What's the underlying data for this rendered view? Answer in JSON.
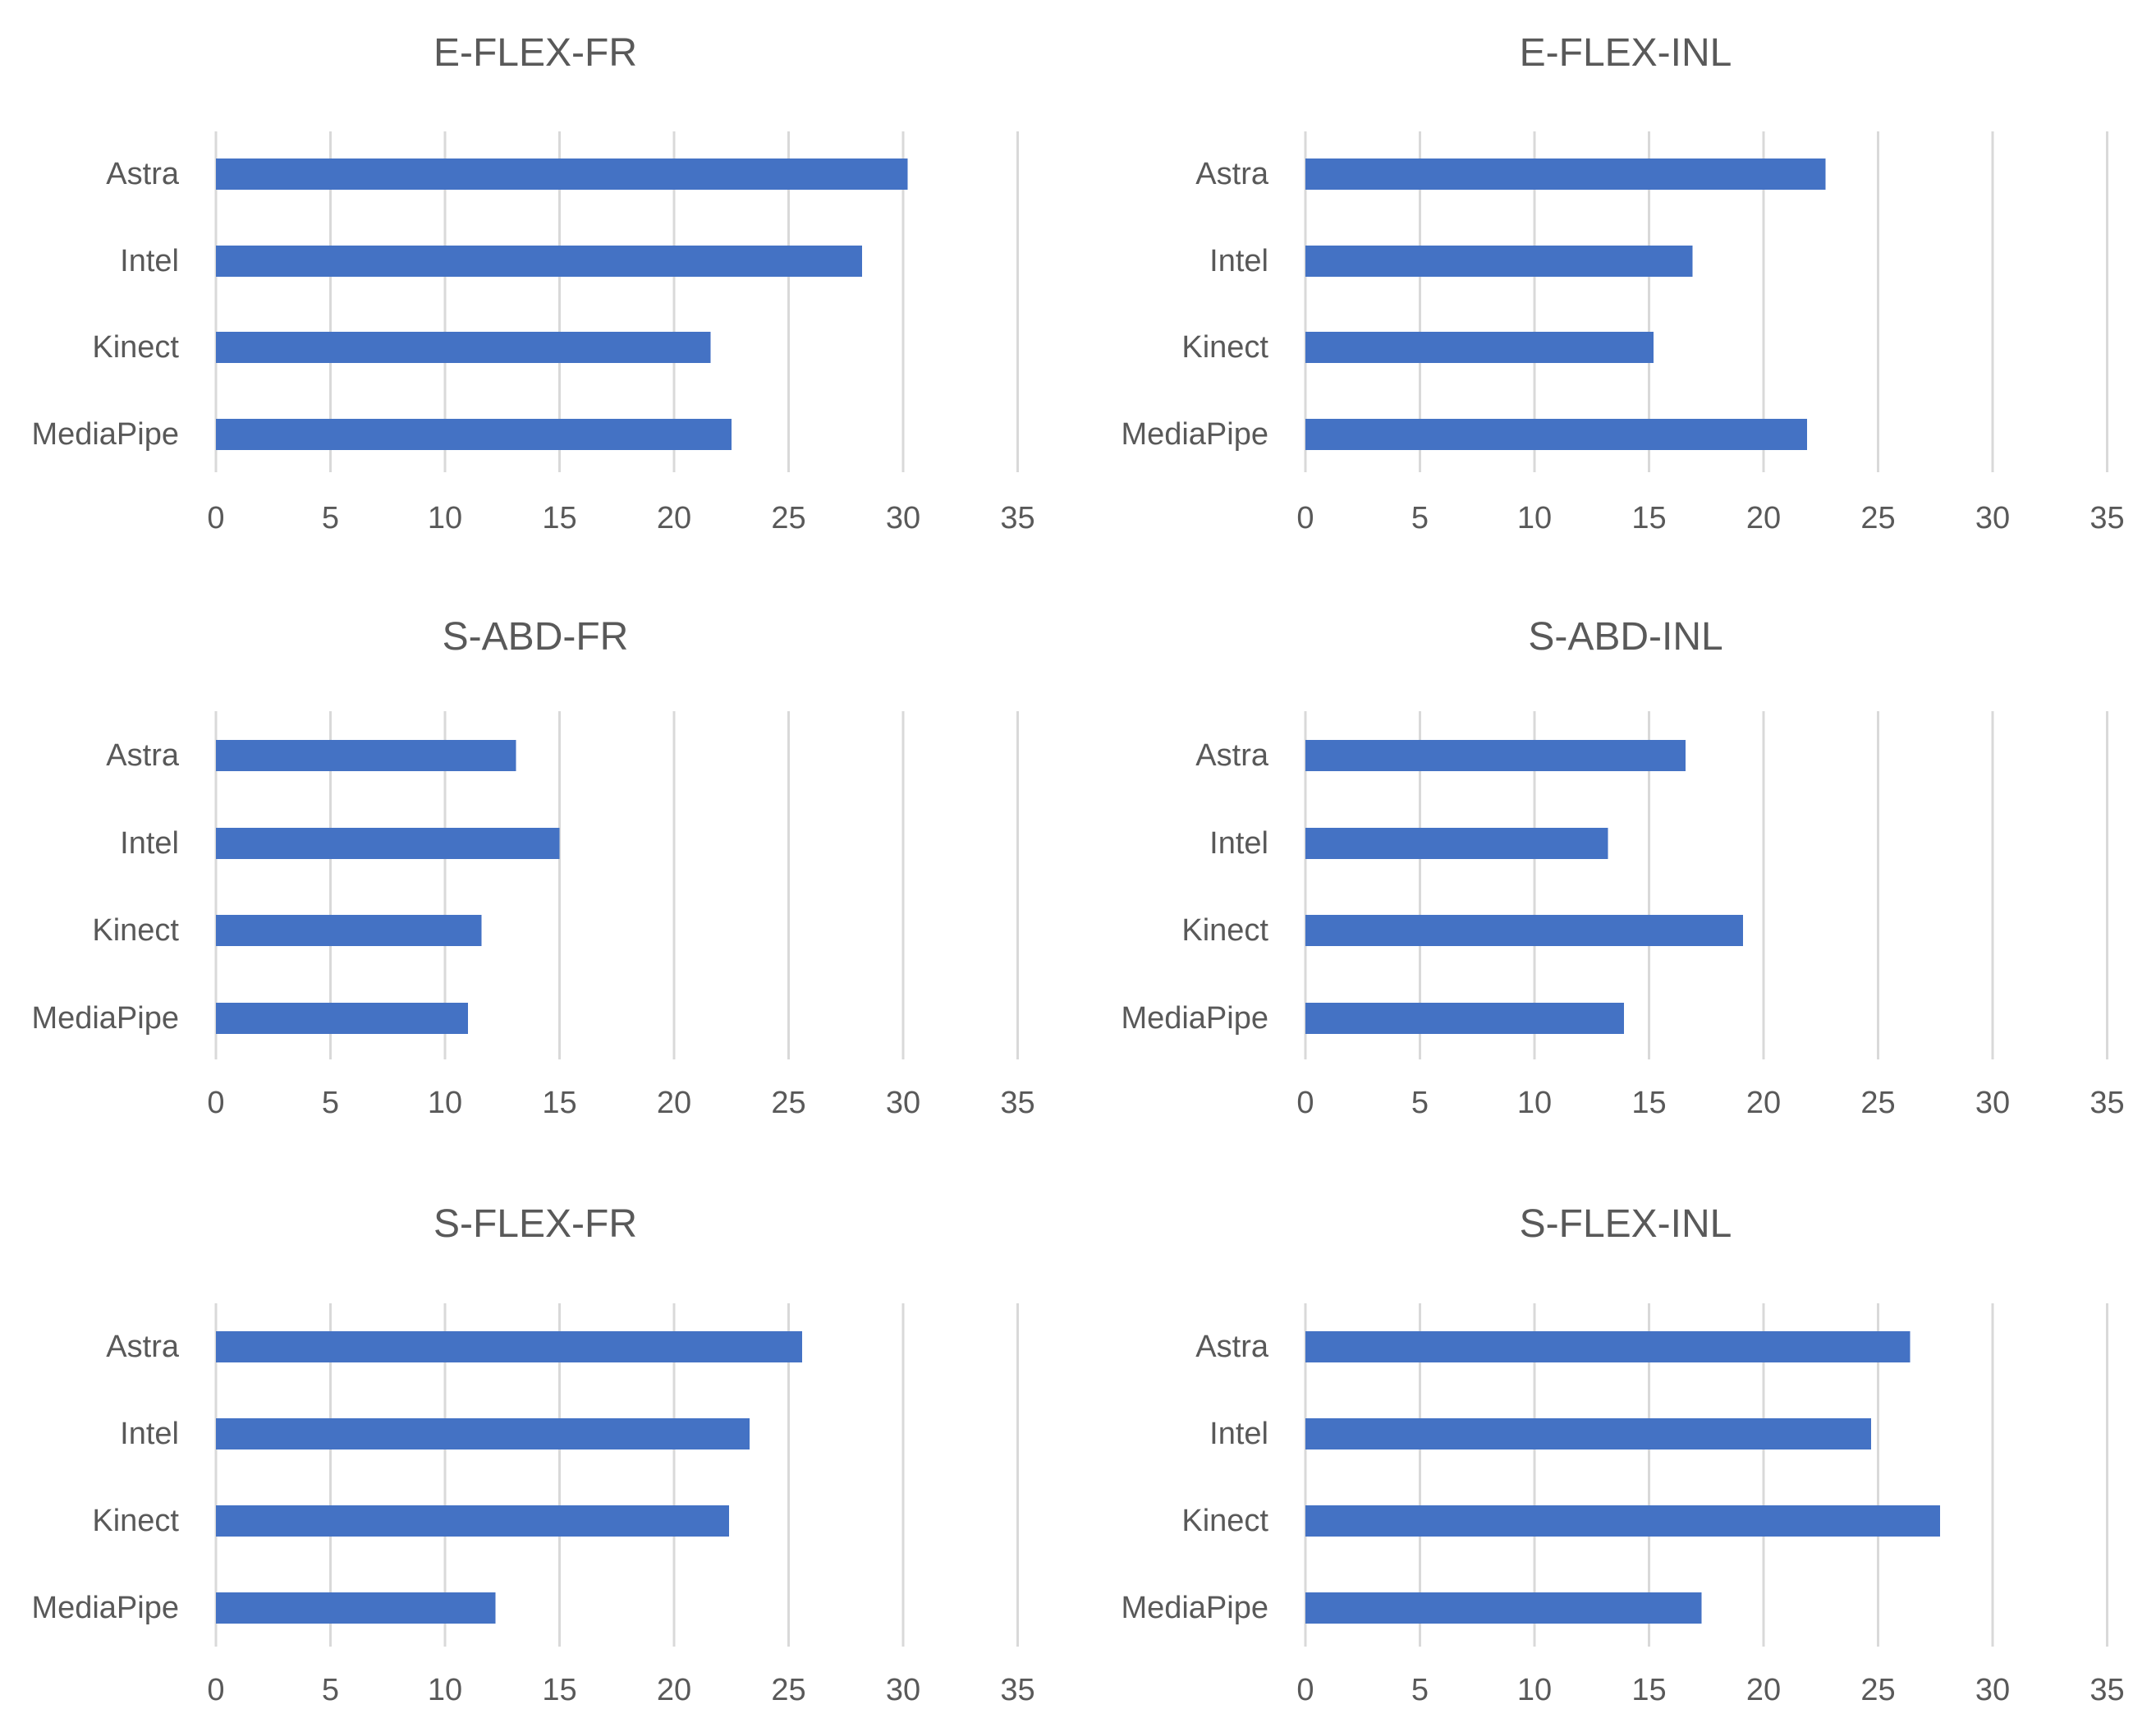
{
  "figure": {
    "layout": "3 rows x 2 columns of horizontal bar charts"
  },
  "colors": {
    "bar": "#4472C4",
    "gridline": "#D9D9D9",
    "text": "#595959"
  },
  "chart_data": [
    {
      "type": "bar",
      "orientation": "horizontal",
      "title": "E-FLEX-FR",
      "categories": [
        "Astra",
        "Intel",
        "Kinect",
        "MediaPipe"
      ],
      "values": [
        30.2,
        28.2,
        21.6,
        22.5
      ],
      "xlim": [
        0,
        35
      ],
      "xticks": [
        0,
        5,
        10,
        15,
        20,
        25,
        30,
        35
      ],
      "grid": true,
      "legend": "none"
    },
    {
      "type": "bar",
      "orientation": "horizontal",
      "title": "E-FLEX-INL",
      "categories": [
        "Astra",
        "Intel",
        "Kinect",
        "MediaPipe"
      ],
      "values": [
        22.7,
        16.9,
        15.2,
        21.9
      ],
      "xlim": [
        0,
        35
      ],
      "xticks": [
        0,
        5,
        10,
        15,
        20,
        25,
        30,
        35
      ],
      "grid": true,
      "legend": "none"
    },
    {
      "type": "bar",
      "orientation": "horizontal",
      "title": "S-ABD-FR",
      "categories": [
        "Astra",
        "Intel",
        "Kinect",
        "MediaPipe"
      ],
      "values": [
        13.1,
        15.0,
        11.6,
        11.0
      ],
      "xlim": [
        0,
        35
      ],
      "xticks": [
        0,
        5,
        10,
        15,
        20,
        25,
        30,
        35
      ],
      "grid": true,
      "legend": "none"
    },
    {
      "type": "bar",
      "orientation": "horizontal",
      "title": "S-ABD-INL",
      "categories": [
        "Astra",
        "Intel",
        "Kinect",
        "MediaPipe"
      ],
      "values": [
        16.6,
        13.2,
        19.1,
        13.9
      ],
      "xlim": [
        0,
        35
      ],
      "xticks": [
        0,
        5,
        10,
        15,
        20,
        25,
        30,
        35
      ],
      "grid": true,
      "legend": "none"
    },
    {
      "type": "bar",
      "orientation": "horizontal",
      "title": "S-FLEX-FR",
      "categories": [
        "Astra",
        "Intel",
        "Kinect",
        "MediaPipe"
      ],
      "values": [
        25.6,
        23.3,
        22.4,
        12.2
      ],
      "xlim": [
        0,
        35
      ],
      "xticks": [
        0,
        5,
        10,
        15,
        20,
        25,
        30,
        35
      ],
      "grid": true,
      "legend": "none"
    },
    {
      "type": "bar",
      "orientation": "horizontal",
      "title": "S-FLEX-INL",
      "categories": [
        "Astra",
        "Intel",
        "Kinect",
        "MediaPipe"
      ],
      "values": [
        26.4,
        24.7,
        27.7,
        17.3
      ],
      "xlim": [
        0,
        35
      ],
      "xticks": [
        0,
        5,
        10,
        15,
        20,
        25,
        30,
        35
      ],
      "grid": true,
      "legend": "none"
    }
  ]
}
